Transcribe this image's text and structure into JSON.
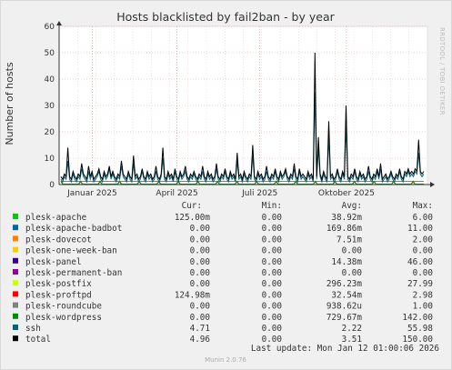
{
  "chart_data": {
    "type": "line",
    "title": "Hosts blacklisted by fail2ban - by year",
    "ylabel": "Number of hosts",
    "ylim": [
      0,
      60
    ],
    "yticks": [
      "0",
      "10",
      "20",
      "30",
      "40",
      "50",
      "60"
    ],
    "xticks": [
      "Januar 2025",
      "April 2025",
      "Juli 2025",
      "Oktober 2025"
    ],
    "grid": true,
    "side_label": "RRDTOOL / TOBI OETIKER",
    "series": [
      {
        "name": "total",
        "color": "#000000",
        "values": [
          3,
          2,
          4,
          3,
          14,
          3,
          2,
          5,
          3,
          2,
          4,
          3,
          8,
          4,
          3,
          2,
          7,
          3,
          5,
          2,
          3,
          4,
          6,
          3,
          2,
          5,
          3,
          4,
          7,
          3,
          5,
          3,
          2,
          4,
          3,
          9,
          4,
          3,
          2,
          5,
          3,
          2,
          11,
          3,
          4,
          2,
          3,
          6,
          3,
          2,
          5,
          3,
          4,
          2,
          3,
          7,
          3,
          2,
          4,
          14,
          3,
          2,
          5,
          3,
          4,
          2,
          6,
          3,
          2,
          5,
          3,
          4,
          7,
          3,
          2,
          4,
          3,
          5,
          3,
          2,
          4,
          3,
          7,
          3,
          2,
          5,
          3,
          4,
          2,
          3,
          8,
          3,
          2,
          4,
          3,
          6,
          3,
          2,
          5,
          3,
          4,
          2,
          12,
          3,
          4,
          2,
          5,
          3,
          2,
          4,
          3,
          15,
          3,
          2,
          5,
          3,
          4,
          2,
          3,
          7,
          3,
          2,
          4,
          3,
          6,
          3,
          2,
          5,
          3,
          4,
          6,
          3,
          2,
          4,
          3,
          8,
          3,
          2,
          6,
          3,
          4,
          3,
          2,
          5,
          3,
          4,
          2,
          50,
          3,
          18,
          4,
          2,
          5,
          3,
          2,
          24,
          3,
          4,
          2,
          3,
          6,
          3,
          2,
          5,
          3,
          30,
          3,
          2,
          4,
          3,
          6,
          3,
          2,
          5,
          3,
          4,
          2,
          3,
          7,
          3,
          2,
          4,
          3,
          6,
          3,
          8,
          2,
          3,
          4,
          2,
          3,
          5,
          3,
          2,
          4,
          3,
          6,
          3,
          2,
          5,
          4,
          6,
          4,
          5,
          4,
          6,
          5,
          17,
          5,
          4,
          5
        ]
      },
      {
        "name": "ssh",
        "color": "#00677e",
        "values": [
          2,
          1,
          3,
          2,
          9,
          2,
          1,
          4,
          2,
          1,
          3,
          2,
          6,
          3,
          2,
          1,
          5,
          2,
          4,
          1,
          2,
          3,
          5,
          2,
          1,
          4,
          2,
          3,
          6,
          2,
          4,
          2,
          1,
          3,
          2,
          7,
          3,
          2,
          1,
          4,
          2,
          1,
          8,
          2,
          3,
          1,
          2,
          5,
          2,
          1,
          4,
          2,
          3,
          1,
          2,
          5,
          2,
          1,
          3,
          10,
          2,
          1,
          4,
          2,
          3,
          1,
          5,
          2,
          1,
          4,
          2,
          3,
          5,
          2,
          1,
          3,
          2,
          4,
          2,
          1,
          3,
          2,
          5,
          2,
          1,
          4,
          2,
          3,
          1,
          2,
          6,
          2,
          1,
          3,
          2,
          5,
          2,
          1,
          4,
          2,
          3,
          1,
          9,
          2,
          3,
          1,
          4,
          2,
          1,
          3,
          2,
          11,
          2,
          1,
          4,
          2,
          3,
          1,
          2,
          5,
          2,
          1,
          3,
          2,
          5,
          2,
          1,
          4,
          2,
          3,
          5,
          2,
          1,
          3,
          2,
          6,
          2,
          1,
          5,
          2,
          3,
          2,
          1,
          4,
          2,
          3,
          1,
          35,
          2,
          14,
          3,
          1,
          4,
          2,
          1,
          18,
          2,
          3,
          1,
          2,
          5,
          2,
          1,
          4,
          2,
          22,
          2,
          1,
          3,
          2,
          5,
          2,
          1,
          4,
          2,
          3,
          1,
          2,
          5,
          2,
          1,
          3,
          2,
          5,
          2,
          6,
          1,
          2,
          3,
          1,
          2,
          4,
          2,
          1,
          3,
          2,
          5,
          2,
          1,
          4,
          3,
          5,
          3,
          4,
          3,
          5,
          4,
          12,
          4,
          3,
          4
        ]
      }
    ],
    "other_series_colors": [
      "#00cc00",
      "#0066b3",
      "#ff8000",
      "#ffcc00",
      "#330099",
      "#990099",
      "#ccff00",
      "#ff0000",
      "#808080",
      "#008f00"
    ]
  },
  "legend": {
    "headers": {
      "cur": "Cur:",
      "min": "Min:",
      "avg": "Avg:",
      "max": "Max:"
    },
    "rows": [
      {
        "name": "plesk-apache",
        "color": "#00cc00",
        "cur": "125.00m",
        "min": "0.00",
        "avg": "38.92m",
        "max": "6.00"
      },
      {
        "name": "plesk-apache-badbot",
        "color": "#0066b3",
        "cur": "0.00",
        "min": "0.00",
        "avg": "169.86m",
        "max": "11.00"
      },
      {
        "name": "plesk-dovecot",
        "color": "#ff8000",
        "cur": "0.00",
        "min": "0.00",
        "avg": "7.51m",
        "max": "2.00"
      },
      {
        "name": "plesk-one-week-ban",
        "color": "#ffcc00",
        "cur": "0.00",
        "min": "0.00",
        "avg": "0.00",
        "max": "0.00"
      },
      {
        "name": "plesk-panel",
        "color": "#330099",
        "cur": "0.00",
        "min": "0.00",
        "avg": "14.38m",
        "max": "46.00"
      },
      {
        "name": "plesk-permanent-ban",
        "color": "#990099",
        "cur": "0.00",
        "min": "0.00",
        "avg": "0.00",
        "max": "0.00"
      },
      {
        "name": "plesk-postfix",
        "color": "#ccff00",
        "cur": "0.00",
        "min": "0.00",
        "avg": "296.23m",
        "max": "27.99"
      },
      {
        "name": "plesk-proftpd",
        "color": "#ff0000",
        "cur": "124.98m",
        "min": "0.00",
        "avg": "32.54m",
        "max": "2.98"
      },
      {
        "name": "plesk-roundcube",
        "color": "#808080",
        "cur": "0.00",
        "min": "0.00",
        "avg": "938.62u",
        "max": "1.00"
      },
      {
        "name": "plesk-wordpress",
        "color": "#008f00",
        "cur": "0.00",
        "min": "0.00",
        "avg": "729.67m",
        "max": "142.00"
      },
      {
        "name": "ssh",
        "color": "#00677e",
        "cur": "4.71",
        "min": "0.00",
        "avg": "2.22",
        "max": "55.98"
      },
      {
        "name": "total",
        "color": "#000000",
        "cur": "4.96",
        "min": "0.00",
        "avg": "3.51",
        "max": "150.00"
      }
    ]
  },
  "footer": {
    "last_update": "Last update: Mon Jan 12 01:00:06 2026",
    "version": "Munin 2.0.76"
  }
}
